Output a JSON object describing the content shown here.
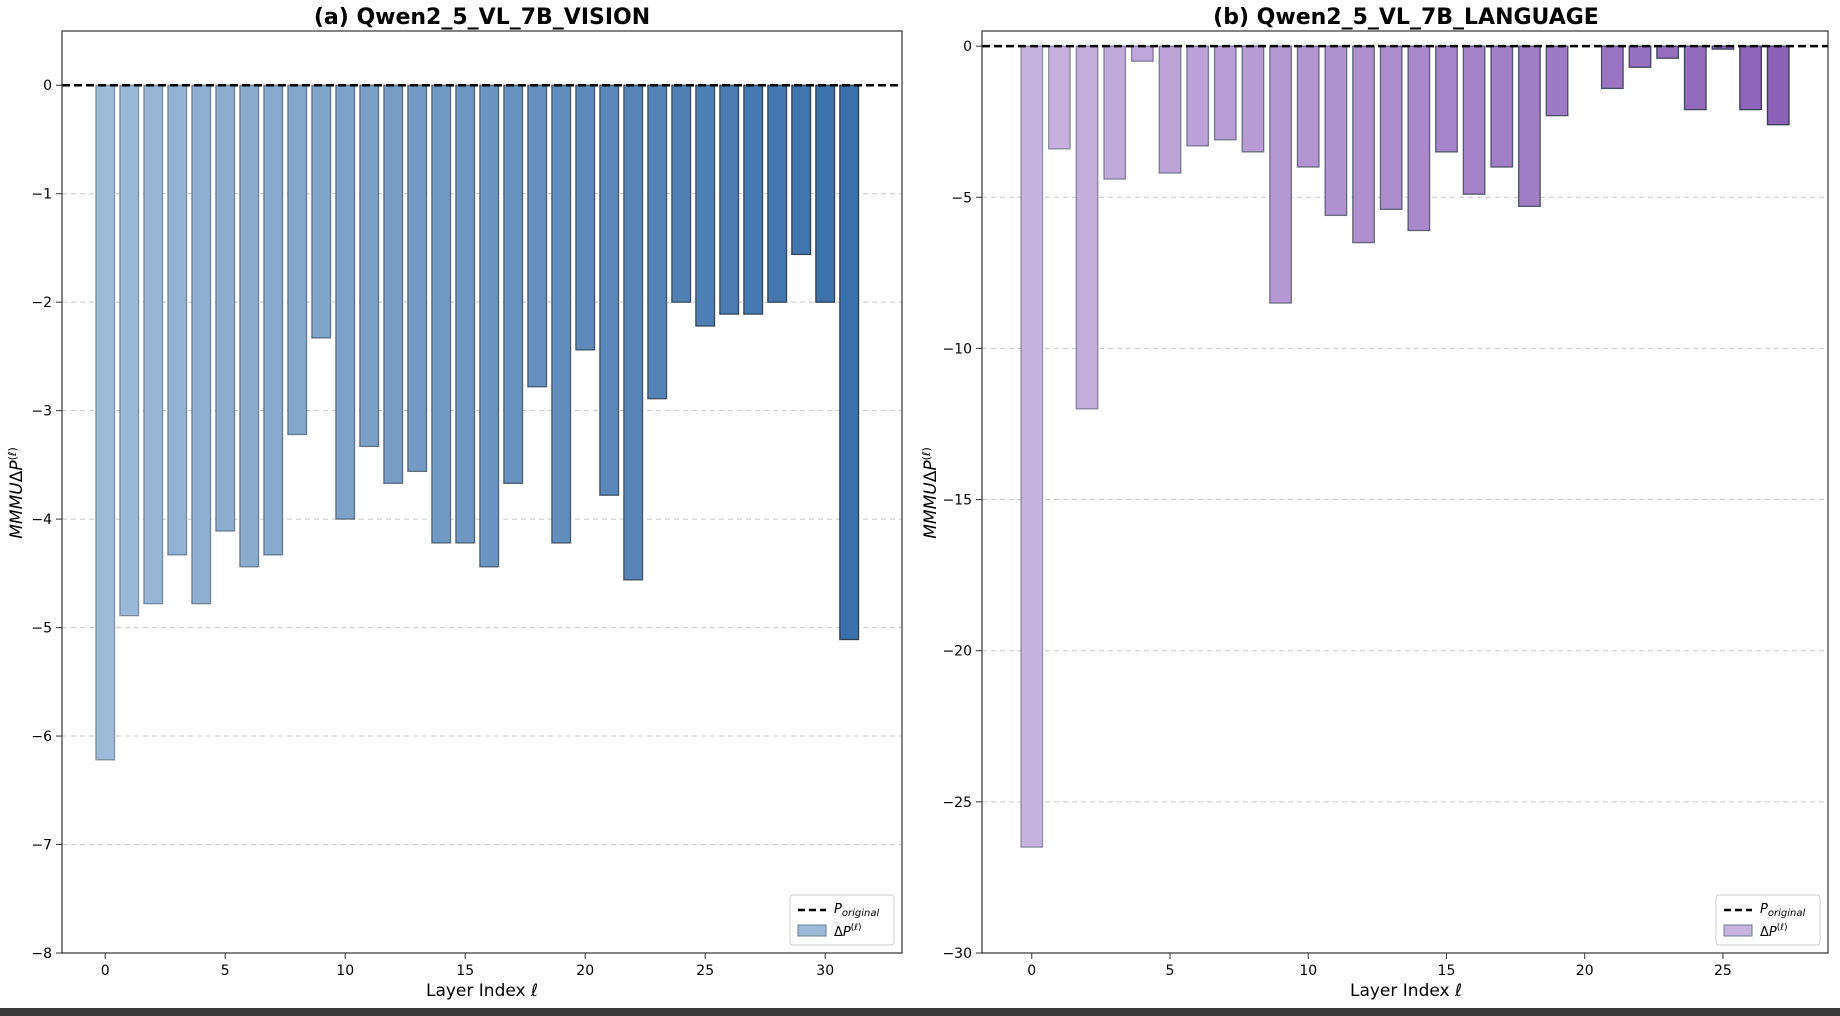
{
  "chart_data": [
    {
      "type": "bar",
      "title": "(a) Qwen2_5_VL_7B_VISION",
      "xlabel": "Layer Index ℓ",
      "ylabel": "MMMUΔP(ℓ)",
      "ylim": [
        -8,
        0.5
      ],
      "xlim": [
        -1.8,
        33.2
      ],
      "yticks": [
        0,
        -1,
        -2,
        -3,
        -4,
        -5,
        -6,
        -7,
        -8
      ],
      "yticklabels": [
        "0",
        "−1",
        "−2",
        "−3",
        "−4",
        "−5",
        "−6",
        "−7",
        "−8"
      ],
      "xticks": [
        0,
        5,
        10,
        15,
        20,
        25,
        30
      ],
      "xticklabels": [
        "0",
        "5",
        "10",
        "15",
        "20",
        "25",
        "30"
      ],
      "grid": "horizontal dashed",
      "baseline": 0,
      "color_light": "#9dbad8",
      "color_dark": "#3a70ab",
      "x": [
        0,
        1,
        2,
        3,
        4,
        5,
        6,
        7,
        8,
        9,
        10,
        11,
        12,
        13,
        14,
        15,
        16,
        17,
        18,
        19,
        20,
        21,
        22,
        23,
        24,
        25,
        26,
        27,
        28,
        29,
        30,
        31
      ],
      "values": [
        -6.22,
        -4.89,
        -4.78,
        -4.33,
        -4.78,
        -4.11,
        -4.44,
        -4.33,
        -3.22,
        -2.33,
        -4.0,
        -3.33,
        -3.67,
        -3.56,
        -4.22,
        -4.22,
        -4.44,
        -3.67,
        -2.78,
        -4.22,
        -2.44,
        -3.78,
        -4.56,
        -2.89,
        -2.0,
        -2.22,
        -2.11,
        -2.11,
        -2.0,
        -1.56,
        -2.0,
        -5.11
      ],
      "legend": {
        "position": "lower-right",
        "items": [
          "P_original",
          "ΔP(ℓ)"
        ]
      }
    },
    {
      "type": "bar",
      "title": "(b) Qwen2_5_VL_7B_LANGUAGE",
      "xlabel": "Layer Index ℓ",
      "ylabel": "MMMUΔP(ℓ)",
      "ylim": [
        -30,
        0.5
      ],
      "xlim": [
        -1.8,
        28.8
      ],
      "yticks": [
        0,
        -5,
        -10,
        -15,
        -20,
        -25,
        -30
      ],
      "yticklabels": [
        "0",
        "−5",
        "−10",
        "−15",
        "−20",
        "−25",
        "−30"
      ],
      "xticks": [
        0,
        5,
        10,
        15,
        20,
        25
      ],
      "xticklabels": [
        "0",
        "5",
        "10",
        "15",
        "20",
        "25"
      ],
      "grid": "horizontal dashed",
      "baseline": 0,
      "color_light": "#c7b3e0",
      "color_dark": "#8c62b8",
      "x": [
        0,
        1,
        2,
        3,
        4,
        5,
        6,
        7,
        8,
        9,
        10,
        11,
        12,
        13,
        14,
        15,
        16,
        17,
        18,
        19,
        20,
        21,
        22,
        23,
        24,
        25,
        26,
        27
      ],
      "values": [
        -26.5,
        -3.4,
        -12.0,
        -4.4,
        -0.5,
        -4.2,
        -3.3,
        -3.1,
        -3.5,
        -8.5,
        -4.0,
        -5.6,
        -6.5,
        -5.4,
        -6.1,
        -3.5,
        -4.9,
        -4.0,
        -5.3,
        -2.3,
        0,
        -1.4,
        -0.7,
        -0.4,
        -2.1,
        -0.1,
        -2.1,
        -2.6
      ],
      "legend": {
        "position": "lower-right",
        "items": [
          "P_original",
          "ΔP(ℓ)"
        ]
      }
    }
  ]
}
